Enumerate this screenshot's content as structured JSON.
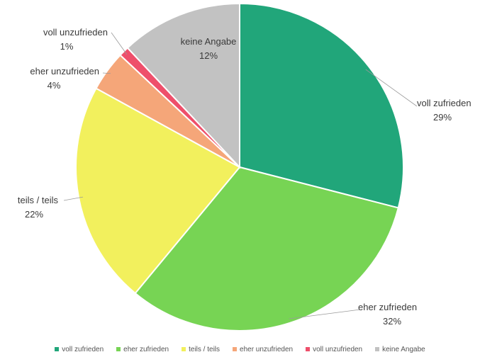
{
  "chart_data": {
    "type": "pie",
    "title": "",
    "slices": [
      {
        "name": "voll zufrieden",
        "value": 29,
        "label": "29%",
        "color": "#21a67a"
      },
      {
        "name": "eher zufrieden",
        "value": 32,
        "label": "32%",
        "color": "#77d454"
      },
      {
        "name": "teils / teils",
        "value": 22,
        "label": "22%",
        "color": "#f2f05d"
      },
      {
        "name": "eher unzufrieden",
        "value": 4,
        "label": "4%",
        "color": "#f5a679"
      },
      {
        "name": "voll unzufrieden",
        "value": 1,
        "label": "1%",
        "color": "#ee4f6b"
      },
      {
        "name": "keine Angabe",
        "value": 12,
        "label": "12%",
        "color": "#c2c2c2"
      }
    ],
    "legend_position": "bottom"
  }
}
